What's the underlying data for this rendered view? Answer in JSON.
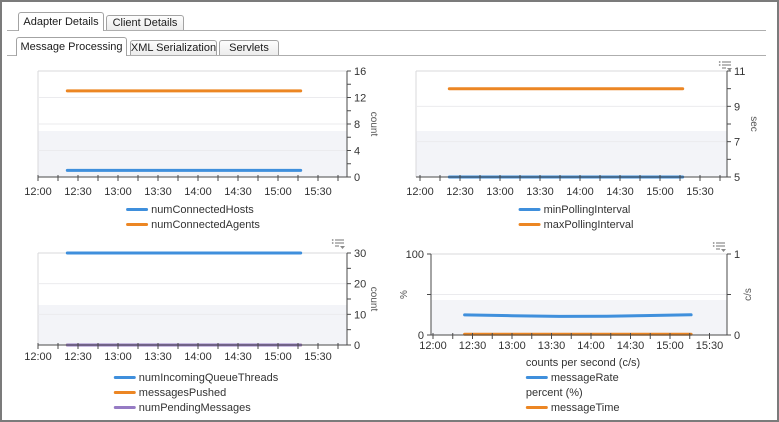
{
  "tabs": {
    "outer": [
      {
        "label": "Adapter Details",
        "active": true
      },
      {
        "label": "Client Details",
        "active": false
      }
    ],
    "inner": [
      {
        "label": "Message Processing",
        "active": true
      },
      {
        "label": "XML Serialization",
        "active": false
      },
      {
        "label": "Servlets",
        "active": false
      }
    ]
  },
  "colors": {
    "blue": "#3F8FDC",
    "orange": "#EC8623",
    "purple": "#967BC4",
    "band": "#F3F4F8",
    "grid": "#EBEBEE",
    "axis": "#4A4A4A",
    "tick_text": "#333333",
    "title_text": "#555555",
    "plot_border": "#D8D8DB",
    "icon_gray": "#8A8A8A"
  },
  "chart_data": [
    {
      "id": "connected-hosts-agents",
      "type": "line",
      "x": {
        "unit": "time-of-day-minutes",
        "range_min": 720,
        "range_max": 952,
        "labels": [
          "12:00",
          "12:30",
          "13:00",
          "13:30",
          "14:00",
          "14:30",
          "15:00",
          "15:30"
        ]
      },
      "axes": [
        {
          "side": "right",
          "title": "count",
          "min": 0,
          "max": 16,
          "minor_step": 2,
          "major_labels": [
            0,
            4,
            8,
            12,
            16
          ],
          "title_rotation": 90
        }
      ],
      "grid_lines": [
        4,
        8,
        12
      ],
      "series": [
        {
          "name": "numConnectedHosts",
          "color": "blue",
          "axis": 0,
          "points": [
            [
              742,
              1
            ],
            [
              917,
              1
            ]
          ]
        },
        {
          "name": "numConnectedAgents",
          "color": "orange",
          "axis": 0,
          "points": [
            [
              742,
              13
            ],
            [
              917,
              13
            ]
          ]
        }
      ],
      "legend": [
        {
          "swatch": "blue",
          "label": "numConnectedHosts"
        },
        {
          "swatch": "orange",
          "label": "numConnectedAgents"
        }
      ],
      "menu_icon": false
    },
    {
      "id": "polling-interval",
      "type": "line",
      "x": {
        "unit": "time-of-day-minutes",
        "range_min": 720,
        "range_max": 952,
        "labels": [
          "12:00",
          "12:30",
          "13:00",
          "13:30",
          "14:00",
          "14:30",
          "15:00",
          "15:30"
        ]
      },
      "axes": [
        {
          "side": "right",
          "title": "sec",
          "min": 5,
          "max": 11,
          "minor_step": 1,
          "major_labels": [
            5,
            7,
            9,
            11
          ],
          "title_rotation": 90
        }
      ],
      "grid_lines": [
        7,
        9
      ],
      "series": [
        {
          "name": "minPollingInterval",
          "color": "blue",
          "axis": 0,
          "points": [
            [
              742,
              5
            ],
            [
              917,
              5
            ]
          ]
        },
        {
          "name": "maxPollingInterval",
          "color": "orange",
          "axis": 0,
          "points": [
            [
              742,
              10
            ],
            [
              917,
              10
            ]
          ]
        }
      ],
      "legend": [
        {
          "swatch": "blue",
          "label": "minPollingInterval"
        },
        {
          "swatch": "orange",
          "label": "maxPollingInterval"
        }
      ],
      "menu_icon": true
    },
    {
      "id": "queue-threads-messages",
      "type": "line",
      "x": {
        "unit": "time-of-day-minutes",
        "range_min": 720,
        "range_max": 952,
        "labels": [
          "12:00",
          "12:30",
          "13:00",
          "13:30",
          "14:00",
          "14:30",
          "15:00",
          "15:30"
        ]
      },
      "axes": [
        {
          "side": "right",
          "title": "count",
          "min": 0,
          "max": 30,
          "minor_step": 5,
          "major_labels": [
            0,
            10,
            20,
            30
          ],
          "title_rotation": 90
        }
      ],
      "grid_lines": [
        10,
        20
      ],
      "series": [
        {
          "name": "numIncomingQueueThreads",
          "color": "blue",
          "axis": 0,
          "points": [
            [
              742,
              30
            ],
            [
              917,
              30
            ]
          ]
        },
        {
          "name": "messagesPushed",
          "color": "orange",
          "axis": 0,
          "points": [
            [
              742,
              0
            ],
            [
              917,
              0
            ]
          ]
        },
        {
          "name": "numPendingMessages",
          "color": "purple",
          "axis": 0,
          "points": [
            [
              742,
              0
            ],
            [
              917,
              0
            ]
          ]
        }
      ],
      "legend": [
        {
          "swatch": "blue",
          "label": "numIncomingQueueThreads"
        },
        {
          "swatch": "orange",
          "label": "messagesPushed"
        },
        {
          "swatch": "purple",
          "label": "numPendingMessages"
        }
      ],
      "menu_icon": true
    },
    {
      "id": "message-rate-and-time",
      "type": "line",
      "x": {
        "unit": "time-of-day-minutes",
        "range_min": 720,
        "range_max": 952,
        "labels": [
          "12:00",
          "12:30",
          "13:00",
          "13:30",
          "14:00",
          "14:30",
          "15:00",
          "15:30"
        ]
      },
      "axes": [
        {
          "side": "left",
          "title": "%",
          "min": 0,
          "max": 100,
          "minor_step": 50,
          "major_labels": [
            0,
            100
          ],
          "title_rotation": -90
        },
        {
          "side": "right",
          "title": "c/s",
          "min": 0,
          "max": 1,
          "minor_step": 0.5,
          "major_labels": [
            0,
            1
          ],
          "title_rotation": -90
        }
      ],
      "grid_lines": [
        50
      ],
      "series": [
        {
          "name": "messageRate",
          "color": "blue",
          "axis": 1,
          "points": [
            [
              744,
              0.248
            ],
            [
              780,
              0.238
            ],
            [
              816,
              0.23
            ],
            [
              852,
              0.232
            ],
            [
              880,
              0.24
            ],
            [
              916,
              0.25
            ]
          ]
        },
        {
          "name": "messageTime",
          "color": "orange",
          "axis": 0,
          "points": [
            [
              744,
              1
            ],
            [
              916,
              1
            ]
          ]
        }
      ],
      "legend": [
        {
          "header": "counts per second (c/s)"
        },
        {
          "swatch": "blue",
          "label": "messageRate"
        },
        {
          "header": "percent (%)"
        },
        {
          "swatch": "orange",
          "label": "messageTime"
        }
      ],
      "menu_icon": true
    }
  ]
}
